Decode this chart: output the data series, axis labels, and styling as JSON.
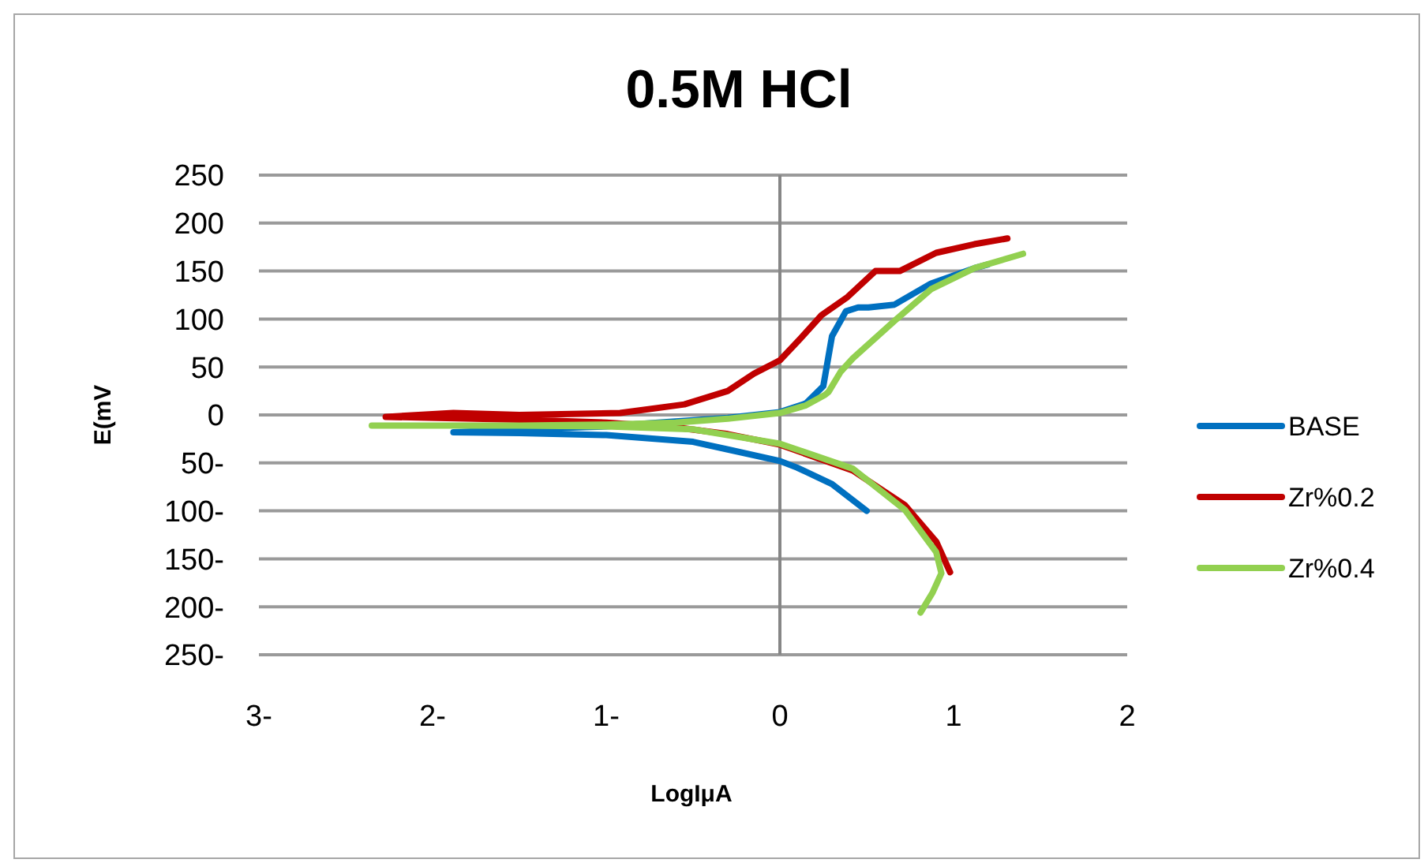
{
  "chart_data": {
    "type": "line",
    "title": "0.5M HCl",
    "xlabel": "LogIμA",
    "ylabel": "E(mV",
    "xlim": [
      -3,
      2
    ],
    "xticks": [
      {
        "value": -3,
        "label": "3-"
      },
      {
        "value": -2,
        "label": "2-"
      },
      {
        "value": -1,
        "label": "1-"
      },
      0,
      1,
      2
    ],
    "ylim": [
      -250,
      250
    ],
    "yticks": [
      {
        "value": -250,
        "label": "250-"
      },
      {
        "value": -200,
        "label": "200-"
      },
      {
        "value": -150,
        "label": "150-"
      },
      {
        "value": -100,
        "label": "100-"
      },
      {
        "value": -50,
        "label": "50-"
      },
      0,
      50,
      100,
      150,
      200,
      250
    ],
    "grid": "y",
    "legend": "right",
    "marker": "none",
    "line_style": "solid",
    "ref_lines": [
      {
        "axis": "x",
        "value": 0,
        "color": "#868686"
      }
    ],
    "series": [
      {
        "name": "BASE",
        "color": "#0070c0",
        "x": [
          0.5,
          0.3,
          0.1,
          0,
          -0.3,
          -0.5,
          -1,
          -1.5,
          -1.88,
          -1.5,
          -1,
          -0.7,
          -0.3,
          0,
          0.15,
          0.25,
          0.3,
          0.38,
          0.45,
          0.51,
          0.66,
          0.87,
          1.12,
          1.2
        ],
        "values": [
          -100,
          -72,
          -55,
          -48,
          -36,
          -28,
          -21,
          -19,
          -18,
          -15,
          -12,
          -8,
          -3,
          3,
          12,
          30,
          82,
          108,
          112,
          112,
          115,
          137,
          153,
          157
        ]
      },
      {
        "name": "Zr%0.2",
        "color": "#c00000",
        "x": [
          0.98,
          0.9,
          0.72,
          0.42,
          0,
          -0.3,
          -0.6,
          -1,
          -1.5,
          -2.27,
          -1.88,
          -1.5,
          -0.92,
          -0.55,
          -0.3,
          -0.15,
          0,
          0.12,
          0.24,
          0.39,
          0.55,
          0.69,
          0.9,
          1.12,
          1.31
        ],
        "values": [
          -164,
          -132,
          -94,
          -58,
          -31,
          -20,
          -13,
          -8,
          -5,
          -2,
          2,
          0,
          2,
          11,
          25,
          43,
          57,
          80,
          104,
          123,
          150,
          150,
          169,
          178,
          184
        ]
      },
      {
        "name": "Zr%0.4",
        "color": "#92d050",
        "x": [
          0.81,
          0.88,
          0.93,
          0.9,
          0.72,
          0.42,
          0,
          -0.5,
          -1,
          -1.5,
          -2.35,
          -1.5,
          -1,
          -0.6,
          -0.3,
          0,
          0.15,
          0.26,
          0.28,
          0.35,
          0.42,
          0.66,
          0.87,
          1.12,
          1.4
        ],
        "values": [
          -206,
          -185,
          -165,
          -143,
          -99,
          -56,
          -30,
          -15,
          -12,
          -11,
          -11,
          -11,
          -10,
          -8,
          -4,
          2,
          10,
          21,
          24,
          45,
          59,
          98,
          131,
          153,
          168
        ]
      }
    ]
  }
}
